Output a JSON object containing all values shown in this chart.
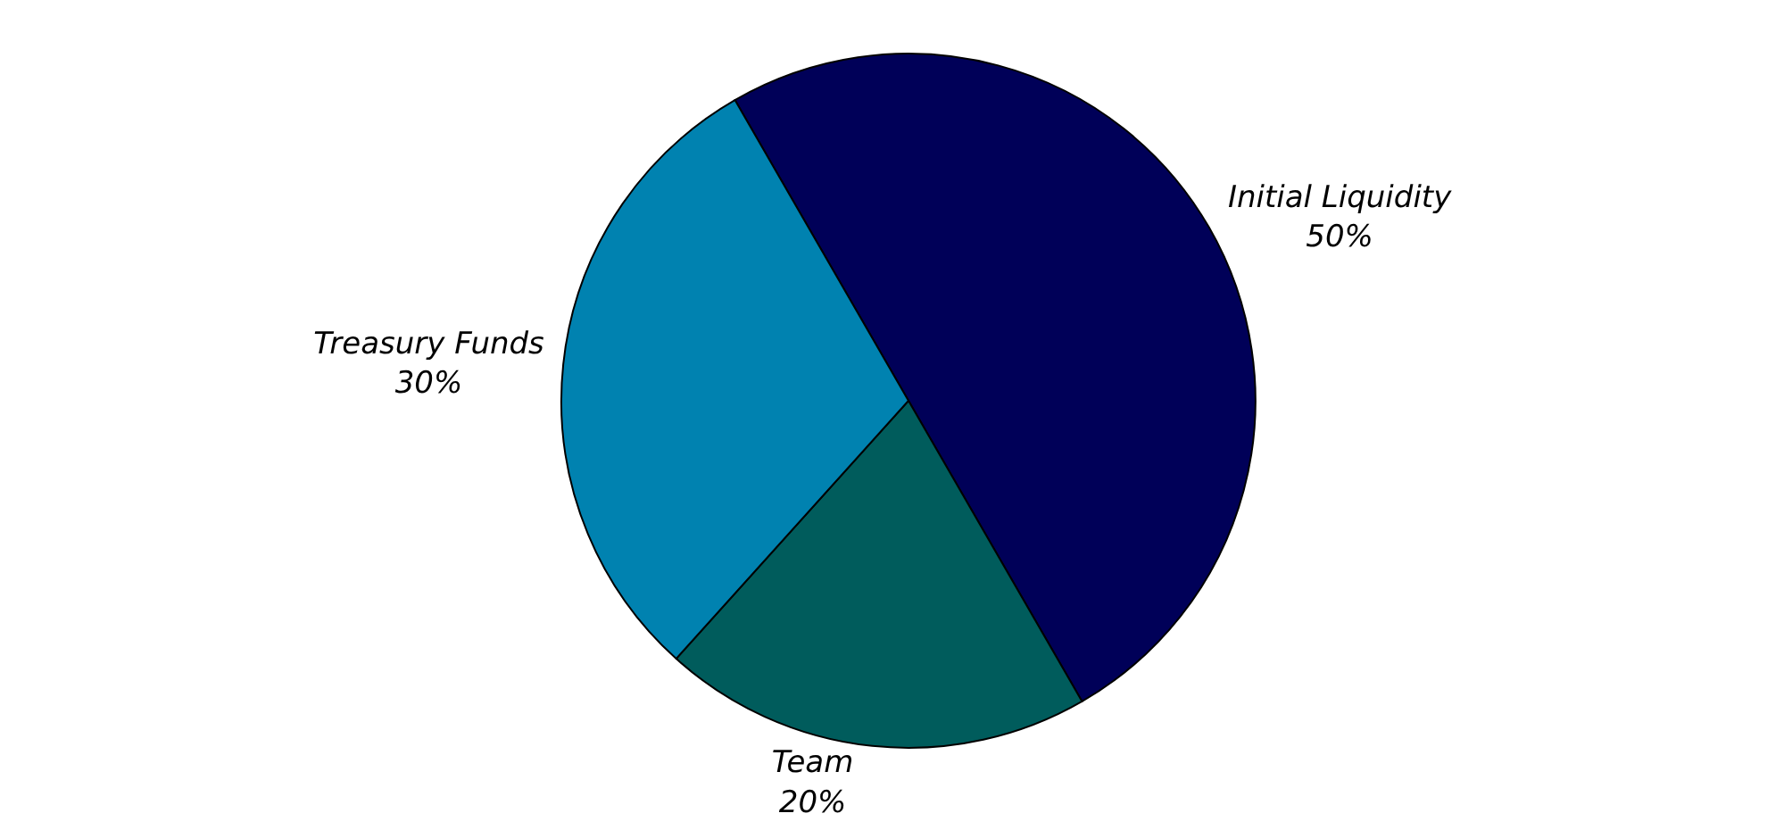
{
  "chart_data": {
    "type": "pie",
    "categories": [
      "Initial Liquidity",
      "Team",
      "Treasury Funds"
    ],
    "values": [
      50,
      20,
      30
    ],
    "value_labels": [
      "50%",
      "20%",
      "30%"
    ],
    "colors": [
      "#000058",
      "#005c5c",
      "#0082b0"
    ],
    "legend": false
  }
}
